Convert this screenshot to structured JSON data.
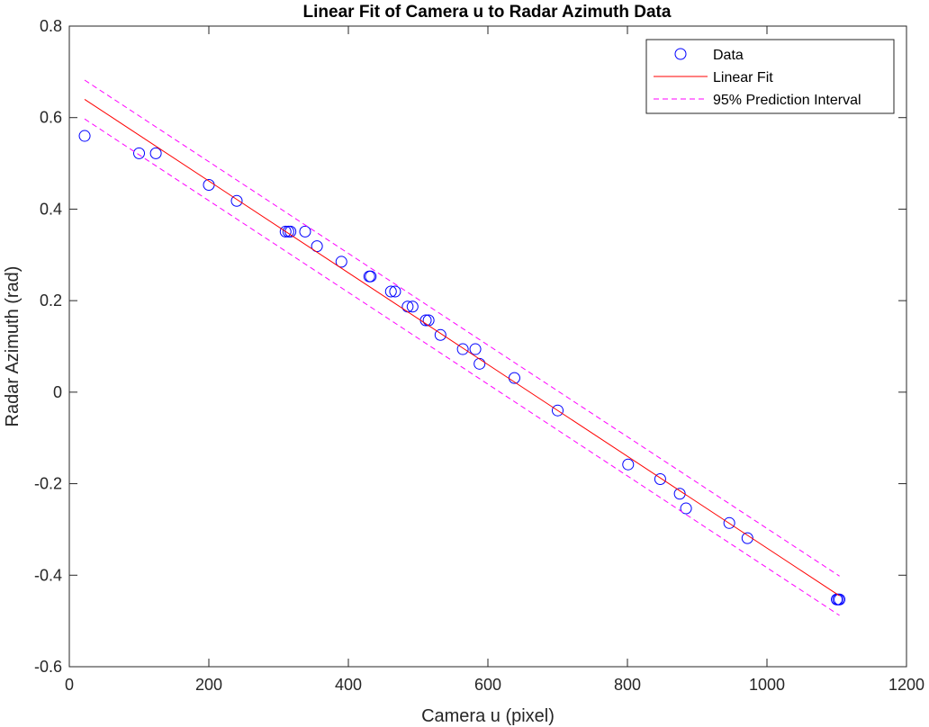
{
  "chart_data": {
    "type": "scatter",
    "title": "Linear Fit of Camera u to Radar Azimuth Data",
    "xlabel": "Camera u (pixel)",
    "ylabel": "Radar Azimuth (rad)",
    "xlim": [
      0,
      1200
    ],
    "ylim": [
      -0.6,
      0.8
    ],
    "xticks": [
      0,
      200,
      400,
      600,
      800,
      1000,
      1200
    ],
    "yticks": [
      -0.6,
      -0.4,
      -0.2,
      0,
      0.2,
      0.4,
      0.6,
      0.8
    ],
    "xtick_labels": [
      "0",
      "200",
      "400",
      "600",
      "800",
      "1000",
      "1200"
    ],
    "ytick_labels": [
      "-0.6",
      "-0.4",
      "-0.2",
      "0",
      "0.2",
      "0.4",
      "0.6",
      "0.8"
    ],
    "grid": false,
    "legend_position": "top-right",
    "legend": [
      "Data",
      "Linear Fit",
      "95% Prediction Interval"
    ],
    "colors": {
      "data": "#0000ff",
      "fit": "#ff0000",
      "interval": "#ff00ff",
      "axes": "#262626"
    },
    "series": [
      {
        "name": "Data",
        "kind": "scatter",
        "points": [
          [
            22,
            0.56
          ],
          [
            100,
            0.522
          ],
          [
            124,
            0.522
          ],
          [
            200,
            0.453
          ],
          [
            240,
            0.418
          ],
          [
            310,
            0.351
          ],
          [
            314,
            0.351
          ],
          [
            317,
            0.351
          ],
          [
            338,
            0.351
          ],
          [
            355,
            0.319
          ],
          [
            390,
            0.285
          ],
          [
            430,
            0.253
          ],
          [
            432,
            0.253
          ],
          [
            461,
            0.22
          ],
          [
            467,
            0.22
          ],
          [
            485,
            0.187
          ],
          [
            492,
            0.187
          ],
          [
            511,
            0.157
          ],
          [
            515,
            0.157
          ],
          [
            532,
            0.125
          ],
          [
            564,
            0.094
          ],
          [
            582,
            0.094
          ],
          [
            588,
            0.062
          ],
          [
            638,
            0.031
          ],
          [
            700,
            -0.04
          ],
          [
            801,
            -0.158
          ],
          [
            847,
            -0.19
          ],
          [
            875,
            -0.222
          ],
          [
            884,
            -0.254
          ],
          [
            946,
            -0.286
          ],
          [
            972,
            -0.319
          ],
          [
            1100,
            -0.453
          ],
          [
            1102,
            -0.453
          ],
          [
            1104,
            -0.453
          ]
        ]
      },
      {
        "name": "Linear Fit",
        "kind": "line",
        "points": [
          [
            22,
            0.64
          ],
          [
            1104,
            -0.445
          ]
        ]
      },
      {
        "name": "95% Prediction Interval",
        "kind": "dashed-line",
        "points": [
          [
            22,
            0.682
          ],
          [
            1104,
            -0.402
          ]
        ]
      },
      {
        "name": "95% Prediction Interval",
        "kind": "dashed-line",
        "points": [
          [
            22,
            0.597
          ],
          [
            1104,
            -0.488
          ]
        ]
      }
    ]
  }
}
